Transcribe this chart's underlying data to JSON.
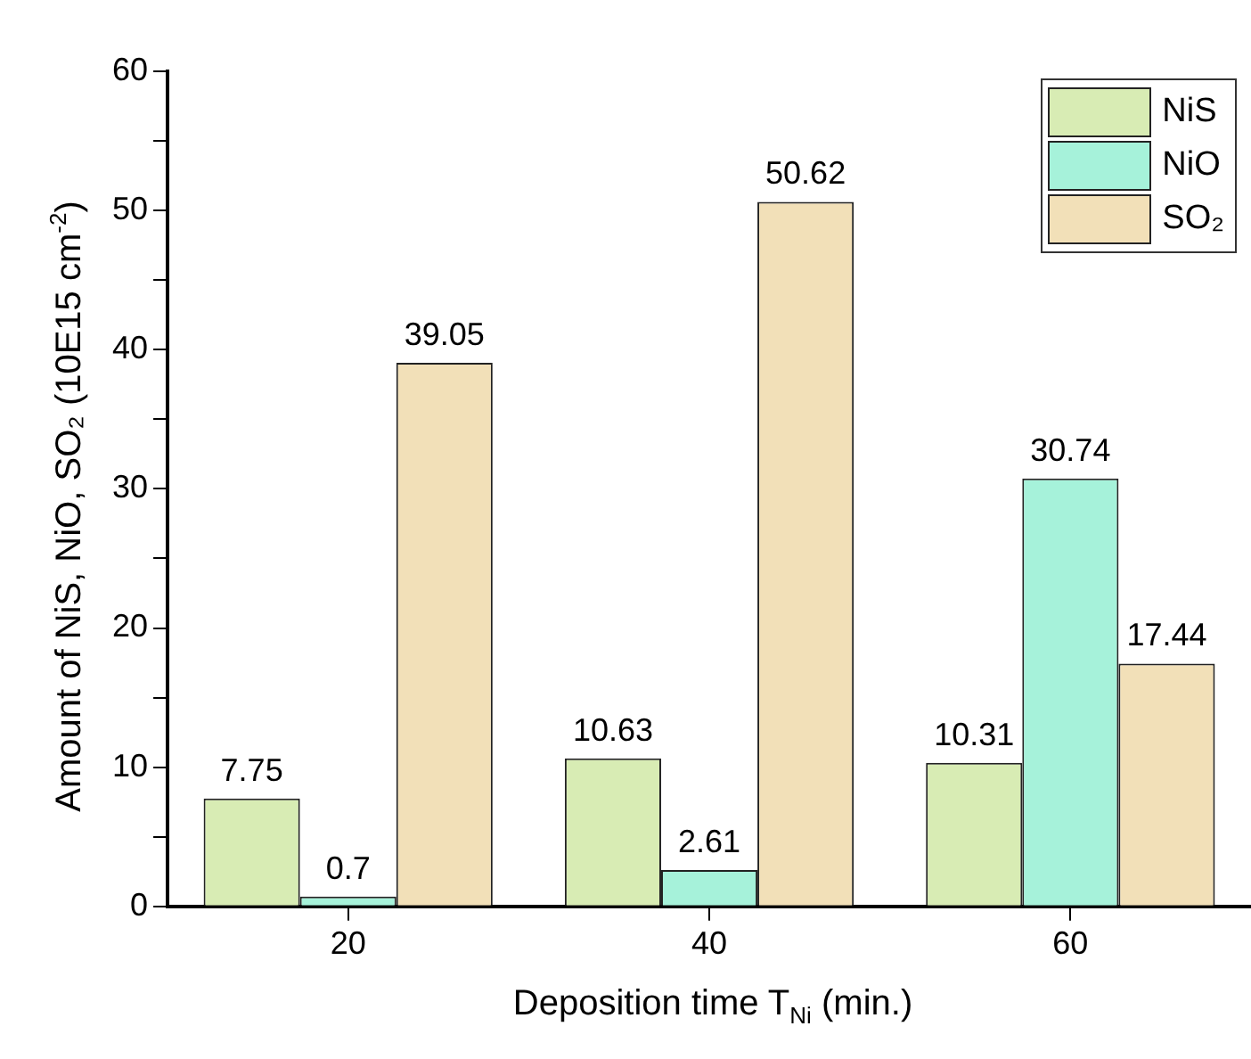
{
  "chart_data": {
    "type": "bar",
    "xlabel": "Deposition time T$_{Ni}$ (min.)",
    "ylabel": "Amount of NiS, NiO, SO₂ (10E15 cm$^{-2}$)",
    "categories": [
      "20",
      "40",
      "60"
    ],
    "series": [
      {
        "name": "NiS",
        "color": "#d8ecb4",
        "values": [
          7.75,
          10.63,
          10.31
        ]
      },
      {
        "name": "NiO",
        "color": "#a6f2da",
        "values": [
          0.7,
          2.61,
          30.74
        ]
      },
      {
        "name": "SO₂",
        "color": "#f2e0b8",
        "values": [
          39.05,
          50.62,
          17.44
        ]
      }
    ],
    "ylim": [
      0,
      60
    ],
    "yticks": [
      0,
      {
        "value": 5,
        "label": null
      },
      10,
      {
        "value": 15,
        "label": null
      },
      20,
      {
        "value": 25,
        "label": null
      },
      30,
      {
        "value": 35,
        "label": null
      },
      40,
      {
        "value": 45,
        "label": null
      },
      50,
      {
        "value": 55,
        "label": null
      },
      60
    ],
    "data_labels": true,
    "legend": "top right"
  }
}
